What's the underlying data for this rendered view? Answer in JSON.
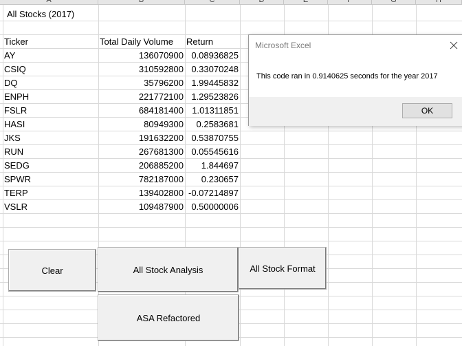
{
  "sheet": {
    "column_headers": [
      "A",
      "B",
      "C",
      "D",
      "E",
      "F",
      "G",
      "H"
    ],
    "title": "All Stocks (2017)",
    "headers": {
      "ticker": "Ticker",
      "volume": "Total Daily Volume",
      "return": "Return"
    },
    "rows": [
      {
        "ticker": "AY",
        "volume": "136070900",
        "return": "0.08936825"
      },
      {
        "ticker": "CSIQ",
        "volume": "310592800",
        "return": "0.33070248"
      },
      {
        "ticker": "DQ",
        "volume": "35796200",
        "return": "1.99445832"
      },
      {
        "ticker": "ENPH",
        "volume": "221772100",
        "return": "1.29523826"
      },
      {
        "ticker": "FSLR",
        "volume": "684181400",
        "return": "1.01311851"
      },
      {
        "ticker": "HASI",
        "volume": "80949300",
        "return": "0.2583681"
      },
      {
        "ticker": "JKS",
        "volume": "191632200",
        "return": "0.53870755"
      },
      {
        "ticker": "RUN",
        "volume": "267681300",
        "return": "0.05545616"
      },
      {
        "ticker": "SEDG",
        "volume": "206885200",
        "return": "1.844697"
      },
      {
        "ticker": "SPWR",
        "volume": "782187000",
        "return": "0.230657"
      },
      {
        "ticker": "TERP",
        "volume": "139402800",
        "return": "-0.07214897"
      },
      {
        "ticker": "VSLR",
        "volume": "109487900",
        "return": "0.50000006"
      }
    ]
  },
  "buttons": {
    "clear": "Clear",
    "all_stock_analysis": "All Stock Analysis",
    "all_stock_format": "All Stock Format",
    "asa_refactored": "ASA Refactored"
  },
  "dialog": {
    "title": "Microsoft Excel",
    "message": "This code ran in 0.9140625 seconds for the year 2017",
    "ok_label": "OK",
    "close_icon": "close-icon"
  }
}
